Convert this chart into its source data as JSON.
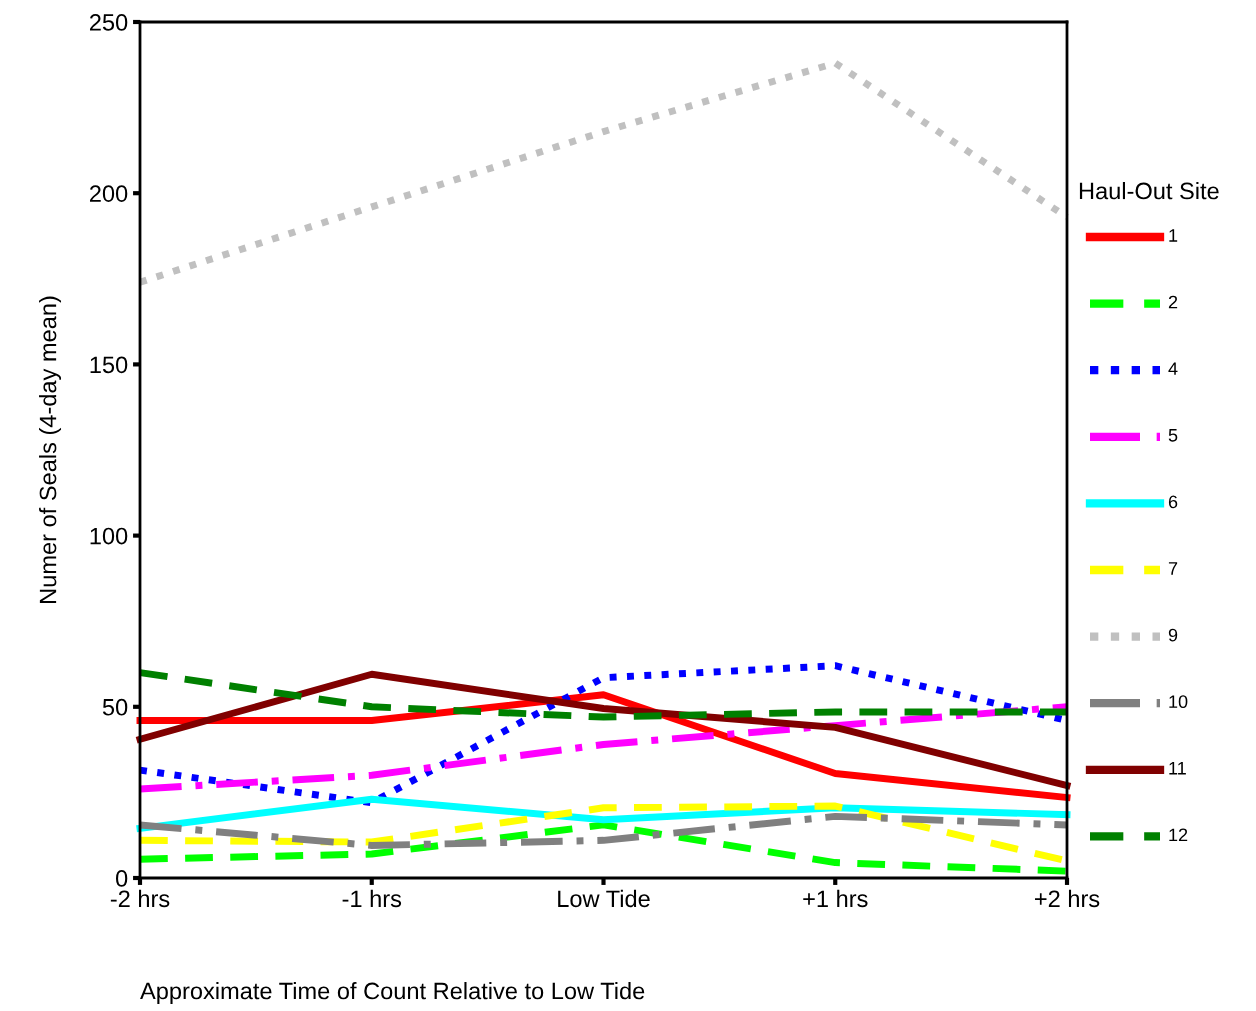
{
  "chart_data": {
    "type": "line",
    "xlabel": "Approximate Time of Count Relative to Low Tide",
    "ylabel": "Numer of Seals (4-day mean)",
    "legend_title": "Haul-Out Site",
    "categories": [
      "-2 hrs",
      "-1 hrs",
      "Low Tide",
      "+1 hrs",
      "+2 hrs"
    ],
    "ylim": [
      0,
      250
    ],
    "yticks": [
      0,
      50,
      100,
      150,
      200,
      250
    ],
    "grid": false,
    "legend": "right",
    "marker": "none",
    "series": [
      {
        "name": "1",
        "color": "#ff0000",
        "line_style": "solid",
        "values": [
          46,
          46,
          53.5,
          30.5,
          23.5
        ]
      },
      {
        "name": "2",
        "color": "#00ff00",
        "line_style": "dashed",
        "values": [
          5.5,
          7,
          15.5,
          4.5,
          2
        ]
      },
      {
        "name": "4",
        "color": "#0000ff",
        "line_style": "dotted",
        "values": [
          31.5,
          22,
          58.5,
          62,
          46
        ]
      },
      {
        "name": "5",
        "color": "#ff00ff",
        "line_style": "dashdot",
        "values": [
          26,
          30,
          39,
          44.5,
          50
        ]
      },
      {
        "name": "6",
        "color": "#00ffff",
        "line_style": "solid",
        "values": [
          14.5,
          23,
          17,
          20.5,
          18.5
        ]
      },
      {
        "name": "7",
        "color": "#ffff00",
        "line_style": "dashed",
        "values": [
          11,
          10.5,
          20.5,
          21,
          5
        ]
      },
      {
        "name": "9",
        "color": "#c0c0c0",
        "line_style": "dotted",
        "values": [
          174,
          196,
          218,
          238,
          193
        ]
      },
      {
        "name": "10",
        "color": "#808080",
        "line_style": "dashdot",
        "values": [
          15.5,
          9.5,
          11,
          18,
          15.5
        ]
      },
      {
        "name": "11",
        "color": "#800000",
        "line_style": "solid",
        "values": [
          40.5,
          59.5,
          49.5,
          44,
          27
        ]
      },
      {
        "name": "12",
        "color": "#008000",
        "line_style": "dashed",
        "values": [
          60,
          50,
          47,
          48.5,
          48.5
        ]
      }
    ]
  }
}
